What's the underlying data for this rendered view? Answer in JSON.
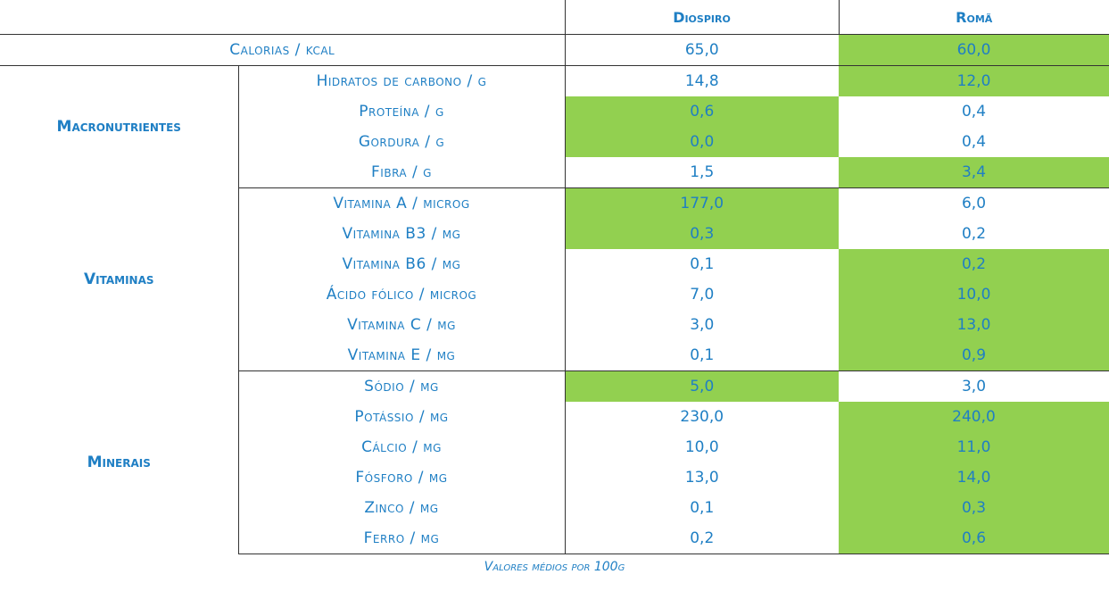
{
  "header": {
    "columns": [
      "Diospiro",
      "Romã"
    ]
  },
  "calories": {
    "label": "Calorias / kcal",
    "values": [
      "65,0",
      "60,0"
    ],
    "highlight": [
      false,
      true
    ]
  },
  "groups": [
    {
      "name": "Macronutrientes",
      "rows": [
        {
          "label": "Hidratos de carbono / g",
          "values": [
            "14,8",
            "12,0"
          ],
          "highlight": [
            false,
            true
          ]
        },
        {
          "label": "Proteína / g",
          "values": [
            "0,6",
            "0,4"
          ],
          "highlight": [
            true,
            false
          ]
        },
        {
          "label": "Gordura / g",
          "values": [
            "0,0",
            "0,4"
          ],
          "highlight": [
            true,
            false
          ]
        },
        {
          "label": "Fibra / g",
          "values": [
            "1,5",
            "3,4"
          ],
          "highlight": [
            false,
            true
          ]
        }
      ]
    },
    {
      "name": "Vitaminas",
      "rows": [
        {
          "label": "Vitamina A / microg",
          "values": [
            "177,0",
            "6,0"
          ],
          "highlight": [
            true,
            false
          ]
        },
        {
          "label": "Vitamina B3 / mg",
          "values": [
            "0,3",
            "0,2"
          ],
          "highlight": [
            true,
            false
          ]
        },
        {
          "label": "Vitamina B6 / mg",
          "values": [
            "0,1",
            "0,2"
          ],
          "highlight": [
            false,
            true
          ]
        },
        {
          "label": "Ácido fólico / microg",
          "values": [
            "7,0",
            "10,0"
          ],
          "highlight": [
            false,
            true
          ]
        },
        {
          "label": "Vitamina C / mg",
          "values": [
            "3,0",
            "13,0"
          ],
          "highlight": [
            false,
            true
          ]
        },
        {
          "label": "Vitamina E / mg",
          "values": [
            "0,1",
            "0,9"
          ],
          "highlight": [
            false,
            true
          ]
        }
      ]
    },
    {
      "name": "Minerais",
      "rows": [
        {
          "label": "Sódio / mg",
          "values": [
            "5,0",
            "3,0"
          ],
          "highlight": [
            true,
            false
          ]
        },
        {
          "label": "Potássio / mg",
          "values": [
            "230,0",
            "240,0"
          ],
          "highlight": [
            false,
            true
          ]
        },
        {
          "label": "Cálcio / mg",
          "values": [
            "10,0",
            "11,0"
          ],
          "highlight": [
            false,
            true
          ]
        },
        {
          "label": "Fósforo / mg",
          "values": [
            "13,0",
            "14,0"
          ],
          "highlight": [
            false,
            true
          ]
        },
        {
          "label": "Zinco / mg",
          "values": [
            "0,1",
            "0,3"
          ],
          "highlight": [
            false,
            true
          ]
        },
        {
          "label": "Ferro / mg",
          "values": [
            "0,2",
            "0,6"
          ],
          "highlight": [
            false,
            true
          ]
        }
      ]
    }
  ],
  "footnote": "Valores médios por 100g"
}
